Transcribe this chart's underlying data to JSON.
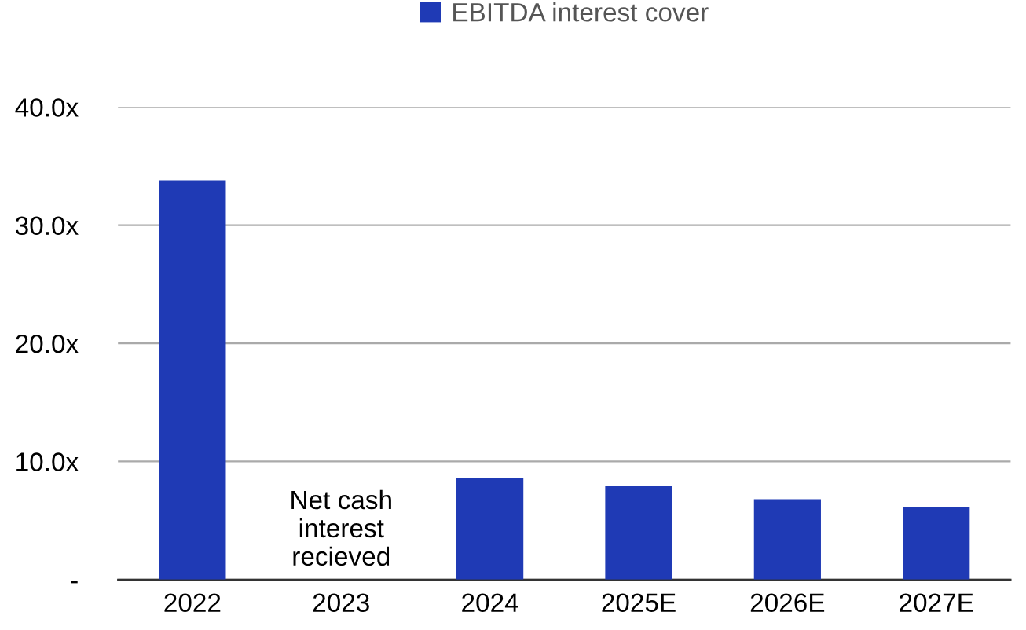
{
  "chart_data": {
    "type": "bar",
    "categories": [
      "2022",
      "2023",
      "2024",
      "2025E",
      "2026E",
      "2027E"
    ],
    "series": [
      {
        "name": "EBITDA interest cover",
        "color": "#1f3ab5",
        "values": [
          33.8,
          0,
          8.6,
          7.9,
          6.8,
          6.1
        ]
      }
    ],
    "ylim": [
      0,
      40
    ],
    "yticks": [
      {
        "value": 0,
        "label": "-"
      },
      {
        "value": 10,
        "label": "10.0x"
      },
      {
        "value": 20,
        "label": "20.0x"
      },
      {
        "value": 30,
        "label": "30.0x"
      },
      {
        "value": 40,
        "label": "40.0x"
      }
    ],
    "grid": "y",
    "legend": "top",
    "annotations": [
      {
        "text": "Net cash\ninterest\nrecieved",
        "x": "2023",
        "y": 0
      }
    ]
  }
}
